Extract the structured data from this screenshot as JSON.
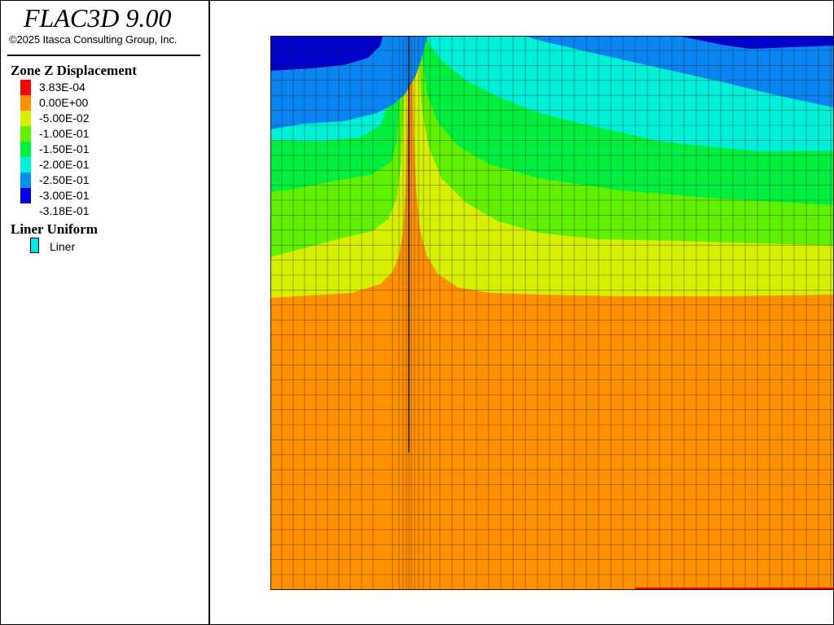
{
  "app": {
    "title": "FLAC3D 9.00",
    "copyright": "©2025 Itasca Consulting Group, Inc."
  },
  "legend": {
    "contour_title": "Zone Z Displacement",
    "entries": [
      {
        "label": "3.83E-04",
        "color": "#ff0000"
      },
      {
        "label": "0.00E+00",
        "color": "#ff9000"
      },
      {
        "label": "-5.00E-02",
        "color": "#d8f000"
      },
      {
        "label": "-1.00E-01",
        "color": "#60f000"
      },
      {
        "label": "-1.50E-01",
        "color": "#00f040"
      },
      {
        "label": "-2.00E-01",
        "color": "#00f0d8"
      },
      {
        "label": "-2.50E-01",
        "color": "#0090f0"
      },
      {
        "label": "-3.00E-01",
        "color": "#0000e8"
      },
      {
        "label": "-3.18E-01",
        "color": null
      }
    ],
    "liner_title": "Liner Uniform",
    "liner_label": "Liner",
    "liner_color": "#00e8f0"
  },
  "plot": {
    "band_colors": {
      "dark_blue": "#0000cc",
      "blue": "#0a84f0",
      "cyan": "#00f0d8",
      "green": "#00f040",
      "lime": "#60f000",
      "yellow": "#d8f000",
      "orange": "#ff9000",
      "red": "#ff0000"
    }
  }
}
